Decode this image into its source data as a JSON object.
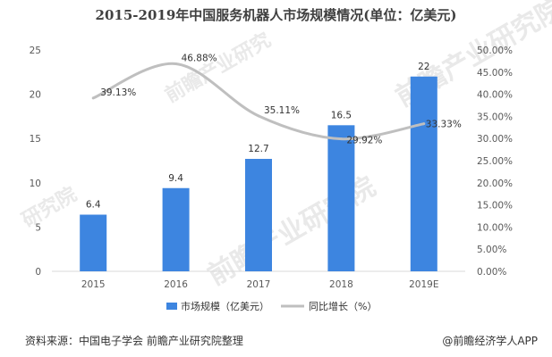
{
  "title": "2015-2019年中国服务机器人市场规模情况(单位：亿美元)",
  "colors": {
    "bar": "#3d85e0",
    "line": "#bfbfbf",
    "axis": "#d9d9d9"
  },
  "chart_data": {
    "type": "bar",
    "categories": [
      "2015",
      "2016",
      "2017",
      "2018",
      "2019E"
    ],
    "series": [
      {
        "name": "市场规模（亿美元）",
        "type": "bar",
        "axis": "left",
        "values": [
          6.4,
          9.4,
          12.7,
          16.5,
          22
        ],
        "labels": [
          "6.4",
          "9.4",
          "12.7",
          "16.5",
          "22"
        ]
      },
      {
        "name": "同比增长（%）",
        "type": "line",
        "axis": "right",
        "values": [
          39.13,
          46.88,
          35.11,
          29.92,
          33.33
        ],
        "labels": [
          "39.13%",
          "46.88%",
          "35.11%",
          "29.92%",
          "33.33%"
        ]
      }
    ],
    "y_left": {
      "lim": [
        0,
        25
      ],
      "ticks": [
        "0",
        "5",
        "10",
        "15",
        "20",
        "25"
      ]
    },
    "y_right": {
      "lim": [
        0,
        50
      ],
      "ticks": [
        "0.00%",
        "5.00%",
        "10.00%",
        "15.00%",
        "20.00%",
        "25.00%",
        "30.00%",
        "35.00%",
        "40.00%",
        "45.00%",
        "50.00%"
      ]
    },
    "legend": {
      "position": "bottom"
    },
    "grid": false
  },
  "footer": {
    "source": "资料来源：中国电子学会 前瞻产业研究院整理",
    "brand": "@前瞻经济学人APP"
  }
}
